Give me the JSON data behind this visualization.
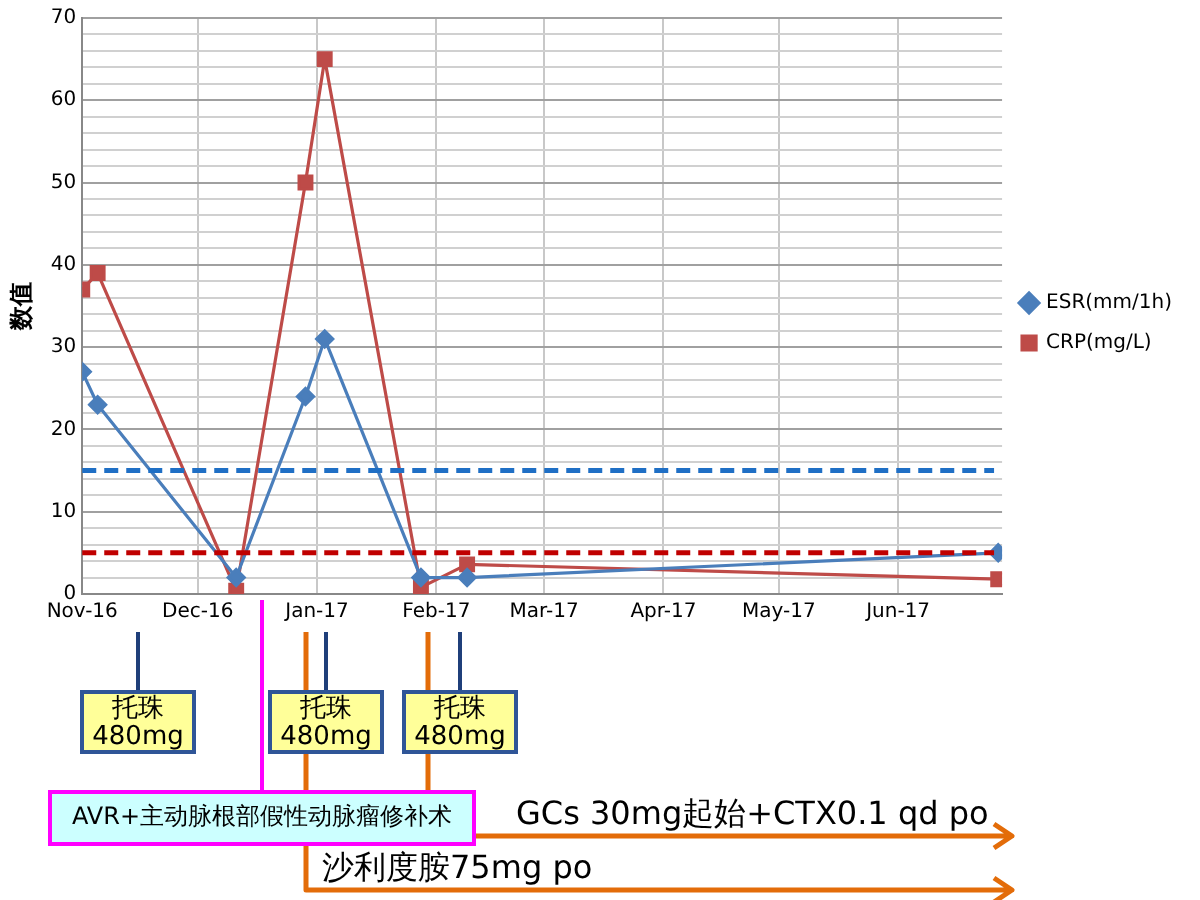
{
  "chart_data": {
    "type": "line",
    "ylabel": "数值",
    "series": [
      {
        "name": "ESR(mm/1h)",
        "color": "#4a7ebb",
        "marker": "diamond",
        "x": [
          "2016-11-01",
          "2016-11-05",
          "2016-12-11",
          "2016-12-29",
          "2017-01-03",
          "2017-01-28",
          "2017-02-09",
          "2017-06-27"
        ],
        "values": [
          27,
          23,
          2,
          24,
          31,
          2,
          2,
          5
        ]
      },
      {
        "name": "CRP(mg/L)",
        "color": "#be4b48",
        "marker": "square",
        "x": [
          "2016-11-01",
          "2016-11-05",
          "2016-12-11",
          "2016-12-29",
          "2017-01-03",
          "2017-01-28",
          "2017-02-09",
          "2017-06-27"
        ],
        "values": [
          37,
          39,
          0.4,
          50,
          65,
          0.8,
          3.6,
          1.8
        ]
      }
    ],
    "xlim": [
      "2016-11-01",
      "2017-06-28"
    ],
    "xticks": [
      {
        "value": "2016-11-01",
        "label": "Nov-16"
      },
      {
        "value": "2016-12-01",
        "label": "Dec-16"
      },
      {
        "value": "2017-01-01",
        "label": "Jan-17"
      },
      {
        "value": "2017-02-01",
        "label": "Feb-17"
      },
      {
        "value": "2017-03-01",
        "label": "Mar-17"
      },
      {
        "value": "2017-04-01",
        "label": "Apr-17"
      },
      {
        "value": "2017-05-01",
        "label": "May-17"
      },
      {
        "value": "2017-06-01",
        "label": "Jun-17"
      }
    ],
    "ylim": [
      0,
      70
    ],
    "yticks": [
      0,
      {
        "value": 2,
        "label": null
      },
      {
        "value": 4,
        "label": null
      },
      {
        "value": 6,
        "label": null
      },
      {
        "value": 8,
        "label": null
      },
      10,
      {
        "value": 12,
        "label": null
      },
      {
        "value": 14,
        "label": null
      },
      {
        "value": 16,
        "label": null
      },
      {
        "value": 18,
        "label": null
      },
      20,
      {
        "value": 22,
        "label": null
      },
      {
        "value": 24,
        "label": null
      },
      {
        "value": 26,
        "label": null
      },
      {
        "value": 28,
        "label": null
      },
      30,
      {
        "value": 32,
        "label": null
      },
      {
        "value": 34,
        "label": null
      },
      {
        "value": 36,
        "label": null
      },
      {
        "value": 38,
        "label": null
      },
      40,
      {
        "value": 42,
        "label": null
      },
      {
        "value": 44,
        "label": null
      },
      {
        "value": 46,
        "label": null
      },
      {
        "value": 48,
        "label": null
      },
      50,
      {
        "value": 52,
        "label": null
      },
      {
        "value": 54,
        "label": null
      },
      {
        "value": 56,
        "label": null
      },
      {
        "value": 58,
        "label": null
      },
      60,
      {
        "value": 62,
        "label": null
      },
      {
        "value": 64,
        "label": null
      },
      {
        "value": 66,
        "label": null
      },
      {
        "value": 68,
        "label": null
      },
      70
    ],
    "grid": true,
    "legend": "right",
    "line_style": "solid",
    "ref_lines": [
      {
        "axis": "y",
        "value": 15,
        "color": "#1f6fc5",
        "line_style": "dashed"
      },
      {
        "axis": "y",
        "value": 5,
        "color": "#c00000",
        "line_style": "dashed"
      }
    ],
    "annotations": [
      "托珠\n480mg",
      "托珠\n480mg",
      "托珠\n480mg",
      "AVR+主动脉根部假性动脉瘤修补术",
      "GCs 30mg起始+CTX0.1 qd po",
      "沙利度胺75mg po"
    ]
  }
}
